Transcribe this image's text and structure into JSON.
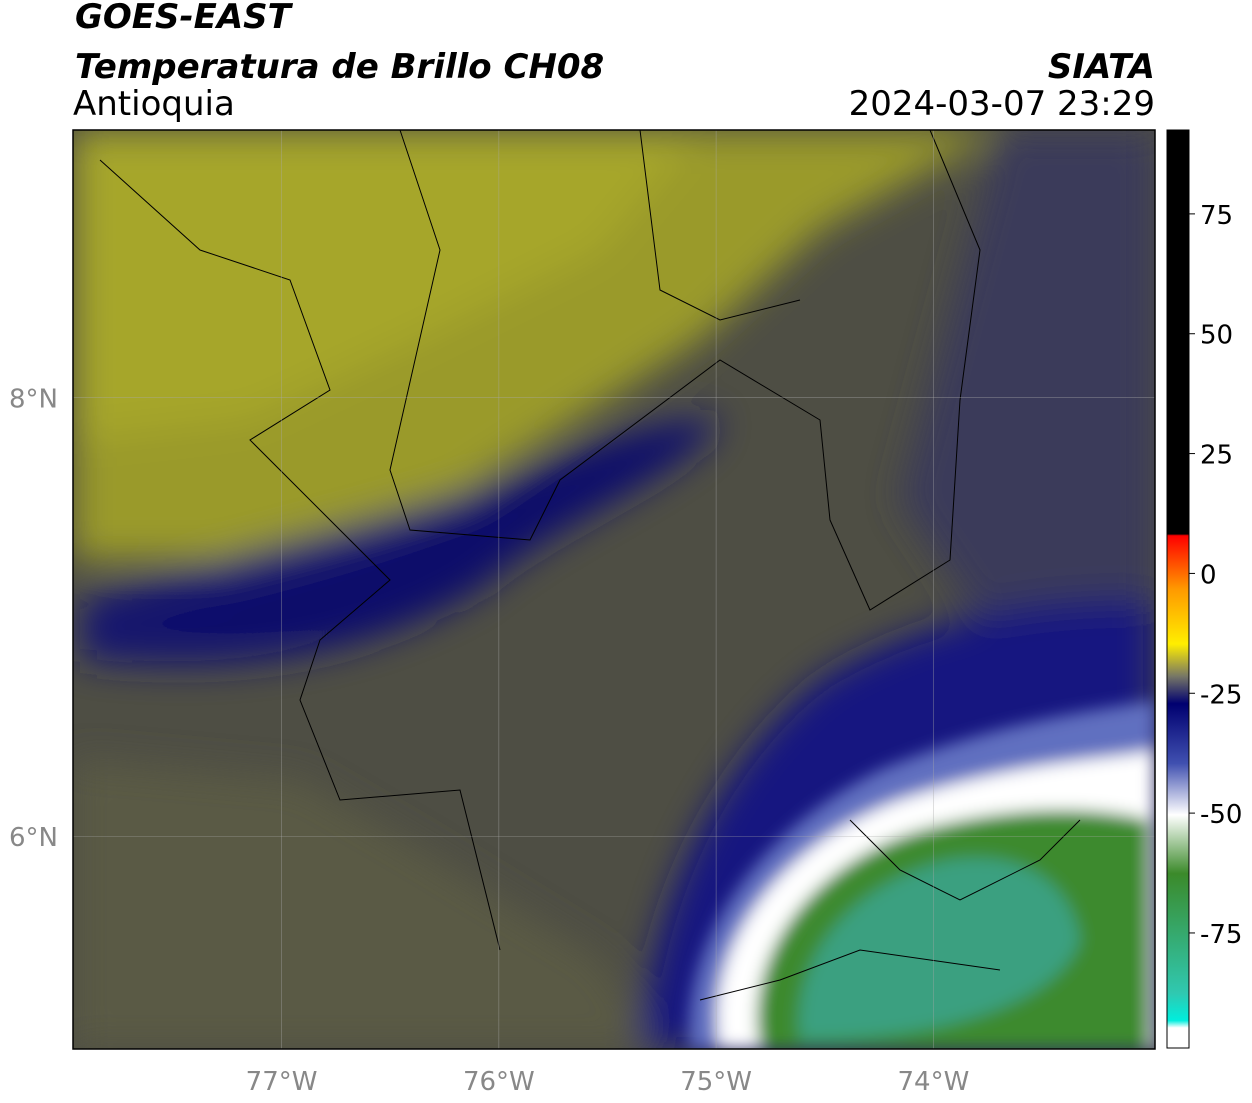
{
  "header": {
    "title": "GOES-EAST",
    "subtitle": "Temperatura de Brillo CH08",
    "region": "Antioquia",
    "source": "SIATA",
    "datetime": "2024-03-07 23:29"
  },
  "map": {
    "xlim": [
      -77.96,
      -72.98
    ],
    "ylim": [
      5.03,
      9.22
    ],
    "xticks": [
      {
        "value": -77,
        "label": "77°W"
      },
      {
        "value": -76,
        "label": "76°W"
      },
      {
        "value": -75,
        "label": "75°W"
      },
      {
        "value": -74,
        "label": "74°W"
      }
    ],
    "yticks": [
      {
        "value": 8,
        "label": "8°N"
      },
      {
        "value": 6,
        "label": "6°N"
      }
    ],
    "grid": true
  },
  "colorbar": {
    "lim": [
      -99,
      92.5
    ],
    "ticks": [
      75,
      50,
      25,
      0,
      -25,
      -50,
      -75
    ]
  }
}
